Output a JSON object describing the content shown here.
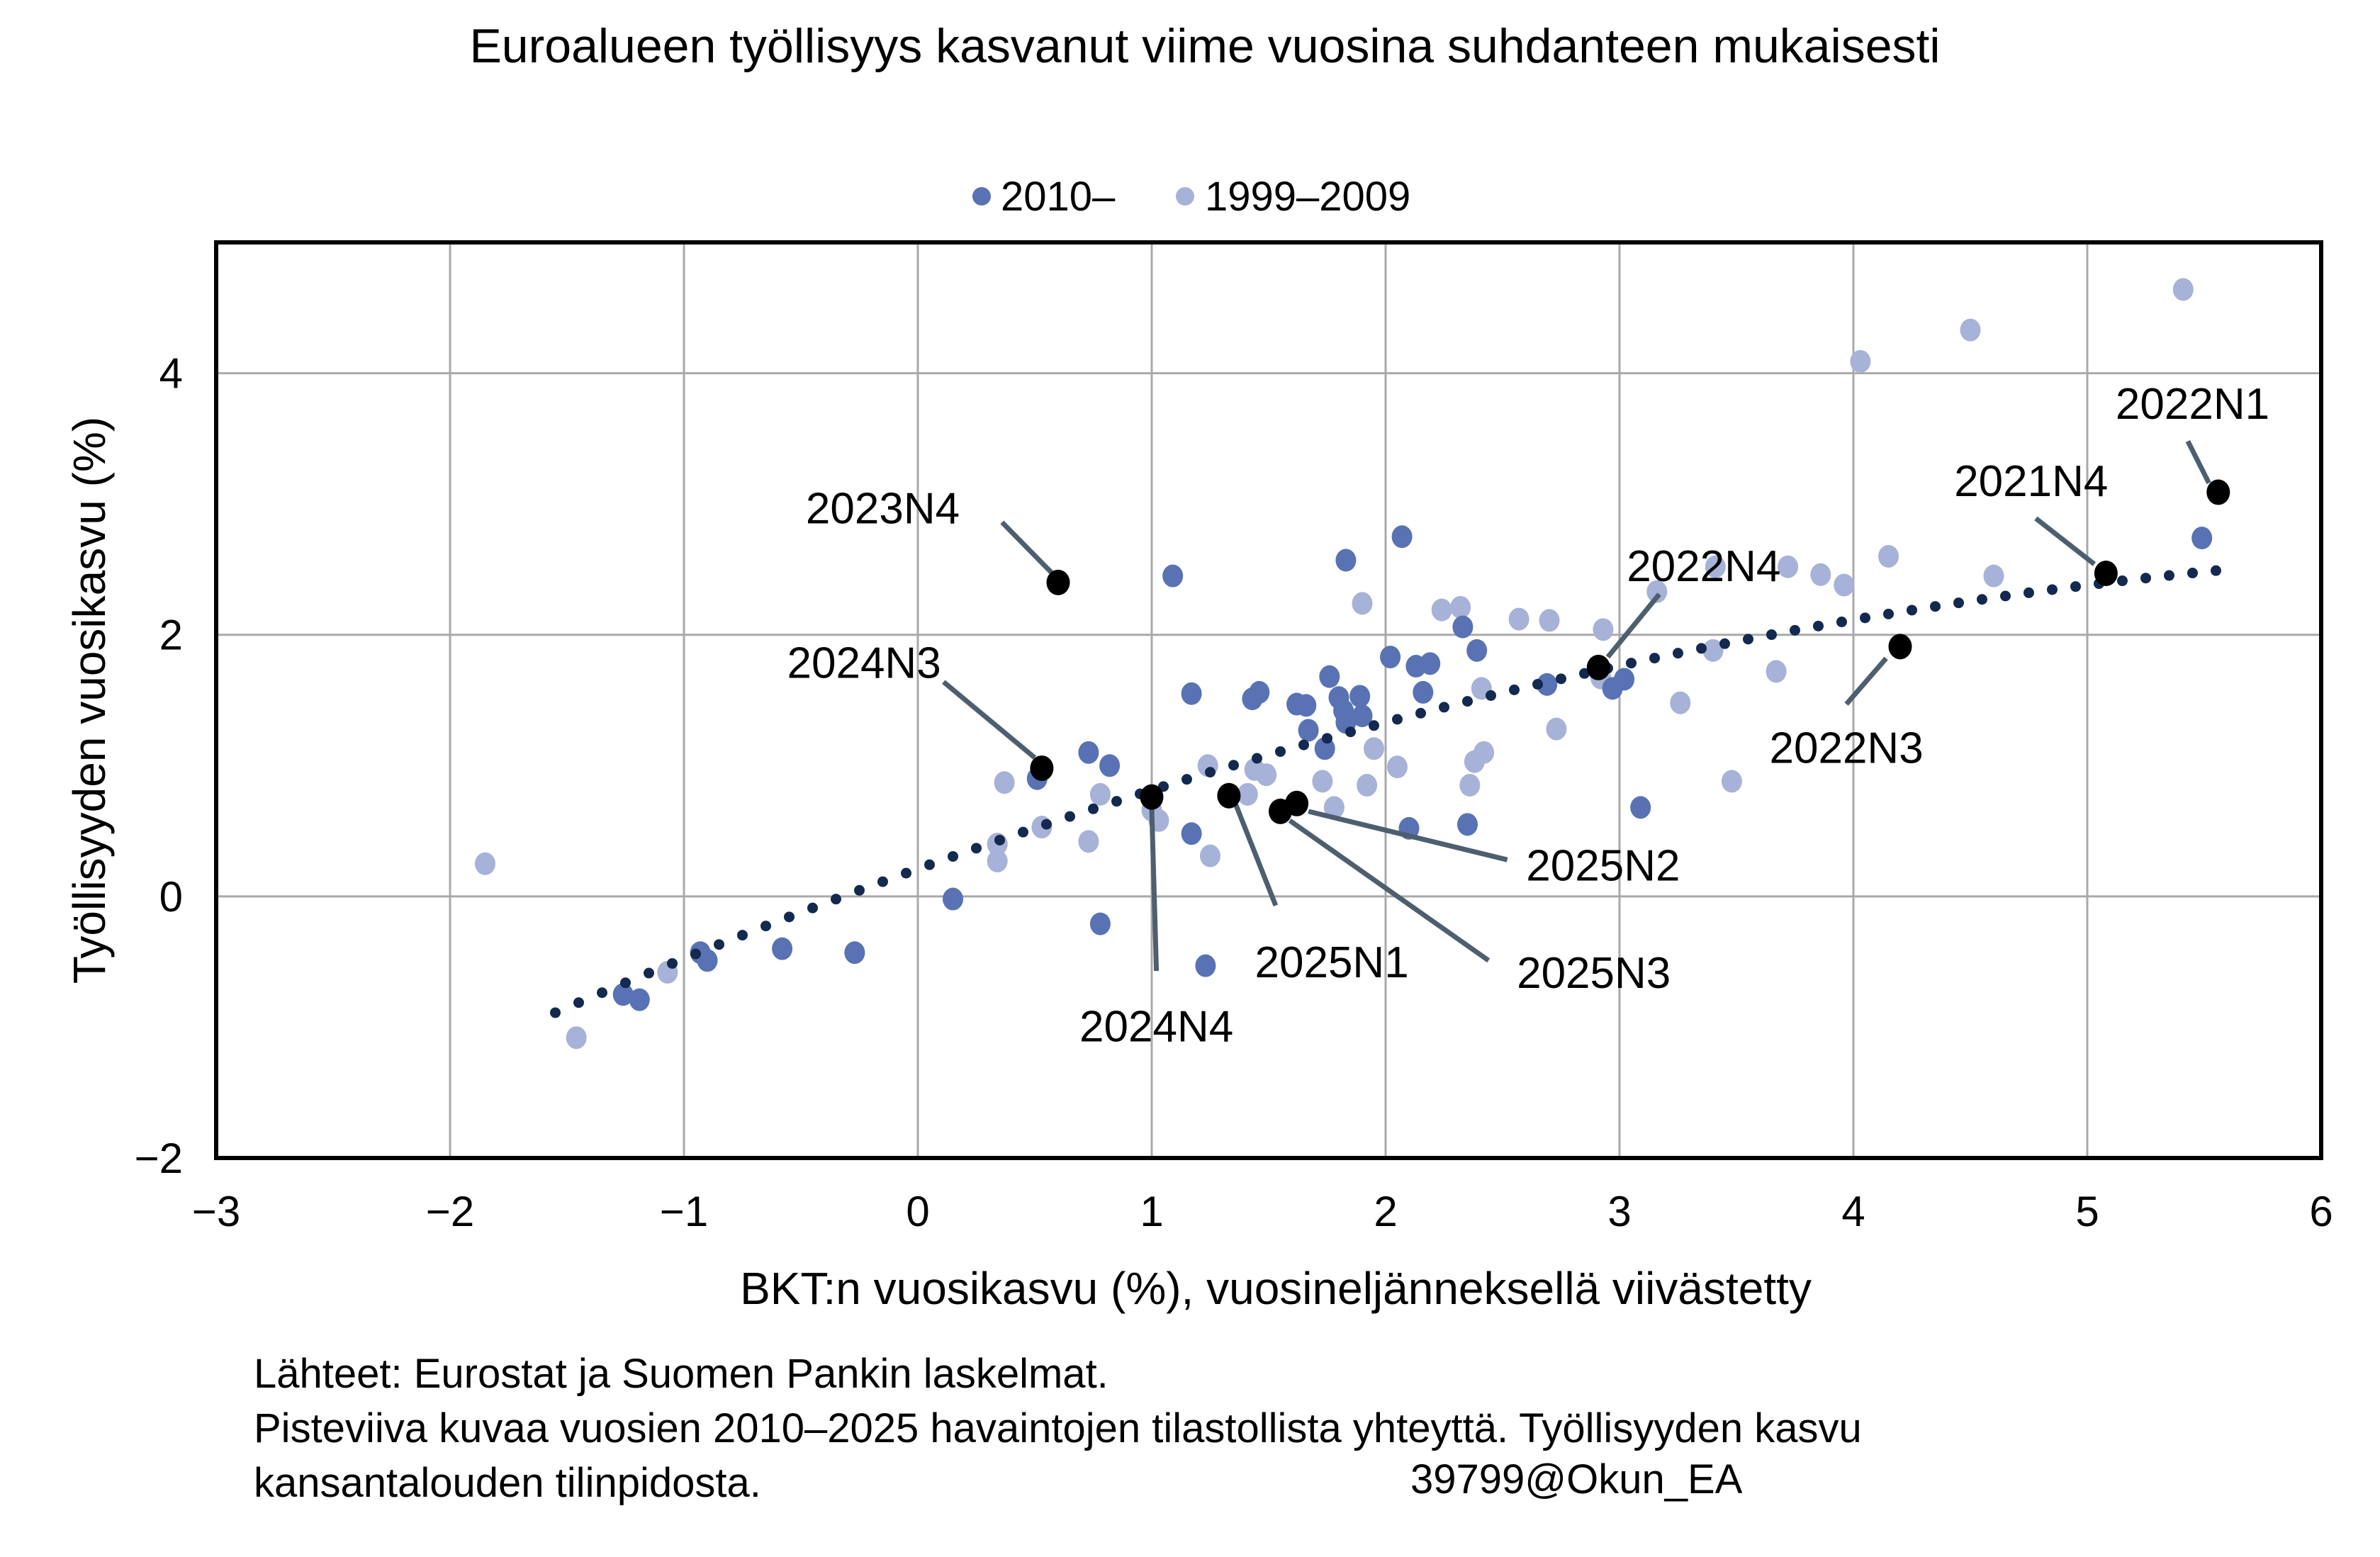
{
  "title": "Euroalueen työllisyys kasvanut viime vuosina suhdanteen mukaisesti",
  "legend": {
    "items": [
      {
        "label": "2010–",
        "color": "#5872b4"
      },
      {
        "label": "1999–2009",
        "color": "#a6b2d8"
      }
    ]
  },
  "footnotes": {
    "line1": "Lähteet: Eurostat ja Suomen Pankin laskelmat.",
    "line2": "Pisteviiva kuvaa vuosien 2010–2025 havaintojen tilastollista yhteyttä. Työllisyyden kasvu",
    "line3": "kansantalouden tilinpidosta.",
    "watermark": "39799@Okun_EA"
  },
  "chart_data": {
    "type": "scatter",
    "xlabel": "BKT:n vuosikasvu (%), vuosineljänneksellä viivästetty",
    "ylabel": "Työllisyyden vuosikasvu (%)",
    "xlim": [
      -3,
      6
    ],
    "ylim": [
      -2,
      5
    ],
    "x_ticks": [
      -3,
      -2,
      -1,
      0,
      1,
      2,
      3,
      4,
      5,
      6
    ],
    "y_ticks": [
      -2,
      0,
      2,
      4
    ],
    "grid": {
      "x_gridlines": [
        -2,
        -1,
        0,
        1,
        2,
        3,
        4,
        5
      ],
      "y_gridlines": [
        0,
        2,
        4
      ],
      "color": "#a9a9a9"
    },
    "series": [
      {
        "name": "2010–",
        "color": "#5872b4",
        "points": [
          [
            -1.26,
            -0.75
          ],
          [
            -1.19,
            -0.79
          ],
          [
            -0.93,
            -0.43
          ],
          [
            -0.9,
            -0.49
          ],
          [
            -0.58,
            -0.4
          ],
          [
            -0.27,
            -0.43
          ],
          [
            0.15,
            -0.02
          ],
          [
            0.78,
            -0.21
          ],
          [
            1.23,
            -0.53
          ],
          [
            0.51,
            0.9
          ],
          [
            0.73,
            1.1
          ],
          [
            0.82,
            1.0
          ],
          [
            1.17,
            0.48
          ],
          [
            1.17,
            1.55
          ],
          [
            1.43,
            1.51
          ],
          [
            1.46,
            1.56
          ],
          [
            1.62,
            1.47
          ],
          [
            1.66,
            1.46
          ],
          [
            1.67,
            1.27
          ],
          [
            1.74,
            1.13
          ],
          [
            1.76,
            1.68
          ],
          [
            1.8,
            1.52
          ],
          [
            1.82,
            1.42
          ],
          [
            1.83,
            1.33
          ],
          [
            1.89,
            1.53
          ],
          [
            1.9,
            1.38
          ],
          [
            2.02,
            1.83
          ],
          [
            2.13,
            1.76
          ],
          [
            2.19,
            1.78
          ],
          [
            2.16,
            1.56
          ],
          [
            2.39,
            1.88
          ],
          [
            2.69,
            1.62
          ],
          [
            2.97,
            1.59
          ],
          [
            3.02,
            1.66
          ],
          [
            2.1,
            0.52
          ],
          [
            2.35,
            0.55
          ],
          [
            3.09,
            0.68
          ],
          [
            1.09,
            2.45
          ],
          [
            1.83,
            2.57
          ],
          [
            2.07,
            2.75
          ],
          [
            2.33,
            2.06
          ],
          [
            5.49,
            2.74
          ]
        ]
      },
      {
        "name": "1999–2009",
        "color": "#a6b2d8",
        "points": [
          [
            -1.85,
            0.25
          ],
          [
            -1.46,
            -1.08
          ],
          [
            -1.07,
            -0.58
          ],
          [
            0.34,
            0.4
          ],
          [
            0.34,
            0.27
          ],
          [
            0.37,
            0.87
          ],
          [
            0.53,
            0.53
          ],
          [
            0.73,
            0.42
          ],
          [
            0.78,
            0.78
          ],
          [
            1.0,
            0.66
          ],
          [
            1.03,
            0.58
          ],
          [
            1.25,
            0.31
          ],
          [
            1.24,
            1.0
          ],
          [
            1.44,
            0.97
          ],
          [
            1.49,
            0.93
          ],
          [
            1.41,
            0.78
          ],
          [
            1.73,
            0.88
          ],
          [
            1.78,
            0.68
          ],
          [
            1.92,
            0.85
          ],
          [
            2.05,
            0.99
          ],
          [
            1.95,
            1.13
          ],
          [
            2.38,
            1.03
          ],
          [
            2.36,
            0.85
          ],
          [
            2.42,
            1.1
          ],
          [
            2.41,
            1.59
          ],
          [
            2.73,
            1.28
          ],
          [
            2.92,
            1.67
          ],
          [
            3.26,
            1.48
          ],
          [
            3.4,
            1.88
          ],
          [
            3.48,
            0.88
          ],
          [
            3.67,
            1.72
          ],
          [
            1.9,
            2.24
          ],
          [
            2.24,
            2.19
          ],
          [
            2.32,
            2.21
          ],
          [
            2.57,
            2.12
          ],
          [
            2.7,
            2.11
          ],
          [
            2.93,
            2.04
          ],
          [
            3.16,
            2.33
          ],
          [
            3.41,
            2.52
          ],
          [
            3.72,
            2.52
          ],
          [
            3.86,
            2.46
          ],
          [
            3.96,
            2.38
          ],
          [
            4.15,
            2.6
          ],
          [
            4.6,
            2.45
          ],
          [
            4.03,
            4.09
          ],
          [
            4.5,
            4.33
          ],
          [
            5.41,
            4.64
          ]
        ]
      }
    ],
    "trend": {
      "description": "dotted fit line for 2010–2025 observations",
      "color": "#13294f",
      "fit": "quadratic",
      "a": 0.21,
      "b": 0.644,
      "c": -0.042,
      "x_start": -1.55,
      "x_end": 5.55,
      "step": 0.1
    },
    "highlights": {
      "color": "#000000",
      "leader_color": "#4d5f6f",
      "points": [
        {
          "label": "2021N4",
          "x": 5.08,
          "y": 2.47,
          "lx": 4.76,
          "ly": 3.18,
          "leader": [
            4.78,
            2.89,
            5.03,
            2.54
          ]
        },
        {
          "label": "2022N1",
          "x": 5.56,
          "y": 3.09,
          "lx": 5.45,
          "ly": 3.77,
          "leader": [
            5.43,
            3.48,
            5.52,
            3.16
          ]
        },
        {
          "label": "2022N3",
          "x": 4.2,
          "y": 1.91,
          "lx": 3.97,
          "ly": 1.14,
          "leader": [
            3.97,
            1.47,
            4.14,
            1.82
          ]
        },
        {
          "label": "2022N4",
          "x": 2.91,
          "y": 1.75,
          "lx": 3.36,
          "ly": 2.53,
          "leader": [
            3.17,
            2.31,
            2.95,
            1.83
          ]
        },
        {
          "label": "2023N4",
          "x": 0.6,
          "y": 2.4,
          "lx": -0.15,
          "ly": 2.97,
          "leader": [
            0.36,
            2.86,
            0.58,
            2.46
          ]
        },
        {
          "label": "2024N3",
          "x": 0.53,
          "y": 0.98,
          "lx": -0.23,
          "ly": 1.79,
          "leader": [
            0.11,
            1.64,
            0.5,
            1.06
          ]
        },
        {
          "label": "2024N4",
          "x": 1.0,
          "y": 0.76,
          "lx": 1.02,
          "ly": -0.99,
          "leader": [
            1.02,
            -0.57,
            1.0,
            0.67
          ]
        },
        {
          "label": "2025N1",
          "x": 1.33,
          "y": 0.77,
          "lx": 1.77,
          "ly": -0.5,
          "leader": [
            1.53,
            -0.07,
            1.36,
            0.7
          ]
        },
        {
          "label": "2025N2",
          "x": 1.62,
          "y": 0.71,
          "lx": 2.93,
          "ly": 0.24,
          "leader": [
            2.52,
            0.28,
            1.67,
            0.65
          ]
        },
        {
          "label": "2025N3",
          "x": 1.55,
          "y": 0.65,
          "lx": 2.89,
          "ly": -0.58,
          "leader": [
            2.44,
            -0.49,
            1.59,
            0.58
          ]
        }
      ]
    }
  }
}
